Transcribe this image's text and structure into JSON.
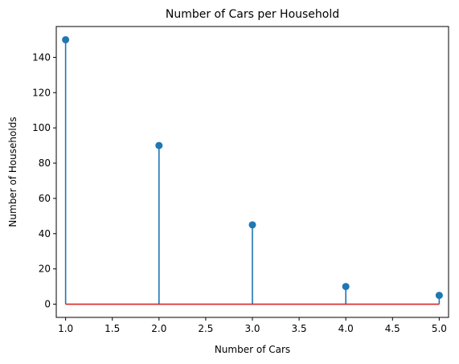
{
  "chart_data": {
    "type": "stem",
    "title": "Number of Cars per Household",
    "xlabel": "Number of Cars",
    "ylabel": "Number of Households",
    "x": [
      1,
      2,
      3,
      4,
      5
    ],
    "values": [
      150,
      90,
      45,
      10,
      5
    ],
    "xlim": [
      0.9,
      5.1
    ],
    "ylim": [
      -7.5,
      157.5
    ],
    "xticks": [
      1.0,
      1.5,
      2.0,
      2.5,
      3.0,
      3.5,
      4.0,
      4.5,
      5.0
    ],
    "xtick_labels": [
      "1.0",
      "1.5",
      "2.0",
      "2.5",
      "3.0",
      "3.5",
      "4.0",
      "4.5",
      "5.0"
    ],
    "yticks": [
      0,
      20,
      40,
      60,
      80,
      100,
      120,
      140
    ],
    "ytick_labels": [
      "0",
      "20",
      "40",
      "60",
      "80",
      "100",
      "120",
      "140"
    ],
    "baseline": 0,
    "grid": false,
    "colors": {
      "stem": "#1f77b4",
      "marker": "#1f77b4",
      "baseline": "#d62728"
    }
  }
}
